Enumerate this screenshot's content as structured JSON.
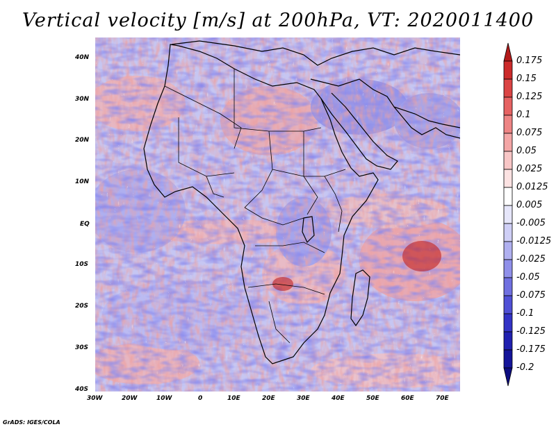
{
  "title": "Vertical velocity [m/s] at 200hPa, VT: 2020011400",
  "credit": "GrADS: IGES/COLA",
  "map": {
    "lon_range": [
      -30,
      75
    ],
    "lat_range": [
      -40,
      45
    ],
    "lat_labels": [
      "40N",
      "30N",
      "20N",
      "10N",
      "EQ",
      "10S",
      "20S",
      "30S",
      "40S"
    ],
    "lon_labels": [
      "30W",
      "20W",
      "10W",
      "0",
      "10E",
      "20E",
      "30E",
      "40E",
      "50E",
      "60E",
      "70E"
    ]
  },
  "colorbar": {
    "labels": [
      "0.175",
      "0.15",
      "0.125",
      "0.1",
      "0.075",
      "0.05",
      "0.025",
      "0.0125",
      "0.005",
      "-0.005",
      "-0.0125",
      "-0.025",
      "-0.05",
      "-0.075",
      "-0.1",
      "-0.125",
      "-0.175",
      "-0.2"
    ],
    "colors": [
      "#b31a1a",
      "#cc2a2a",
      "#db4444",
      "#e66262",
      "#ee8484",
      "#f4a6a6",
      "#f8c6c6",
      "#fce2e2",
      "#ffffff",
      "#e6e6fa",
      "#cfcff6",
      "#b0b0f0",
      "#9090ea",
      "#7070e0",
      "#5050d6",
      "#3333c6",
      "#2020b0",
      "#15159a",
      "#0d0d80"
    ]
  }
}
